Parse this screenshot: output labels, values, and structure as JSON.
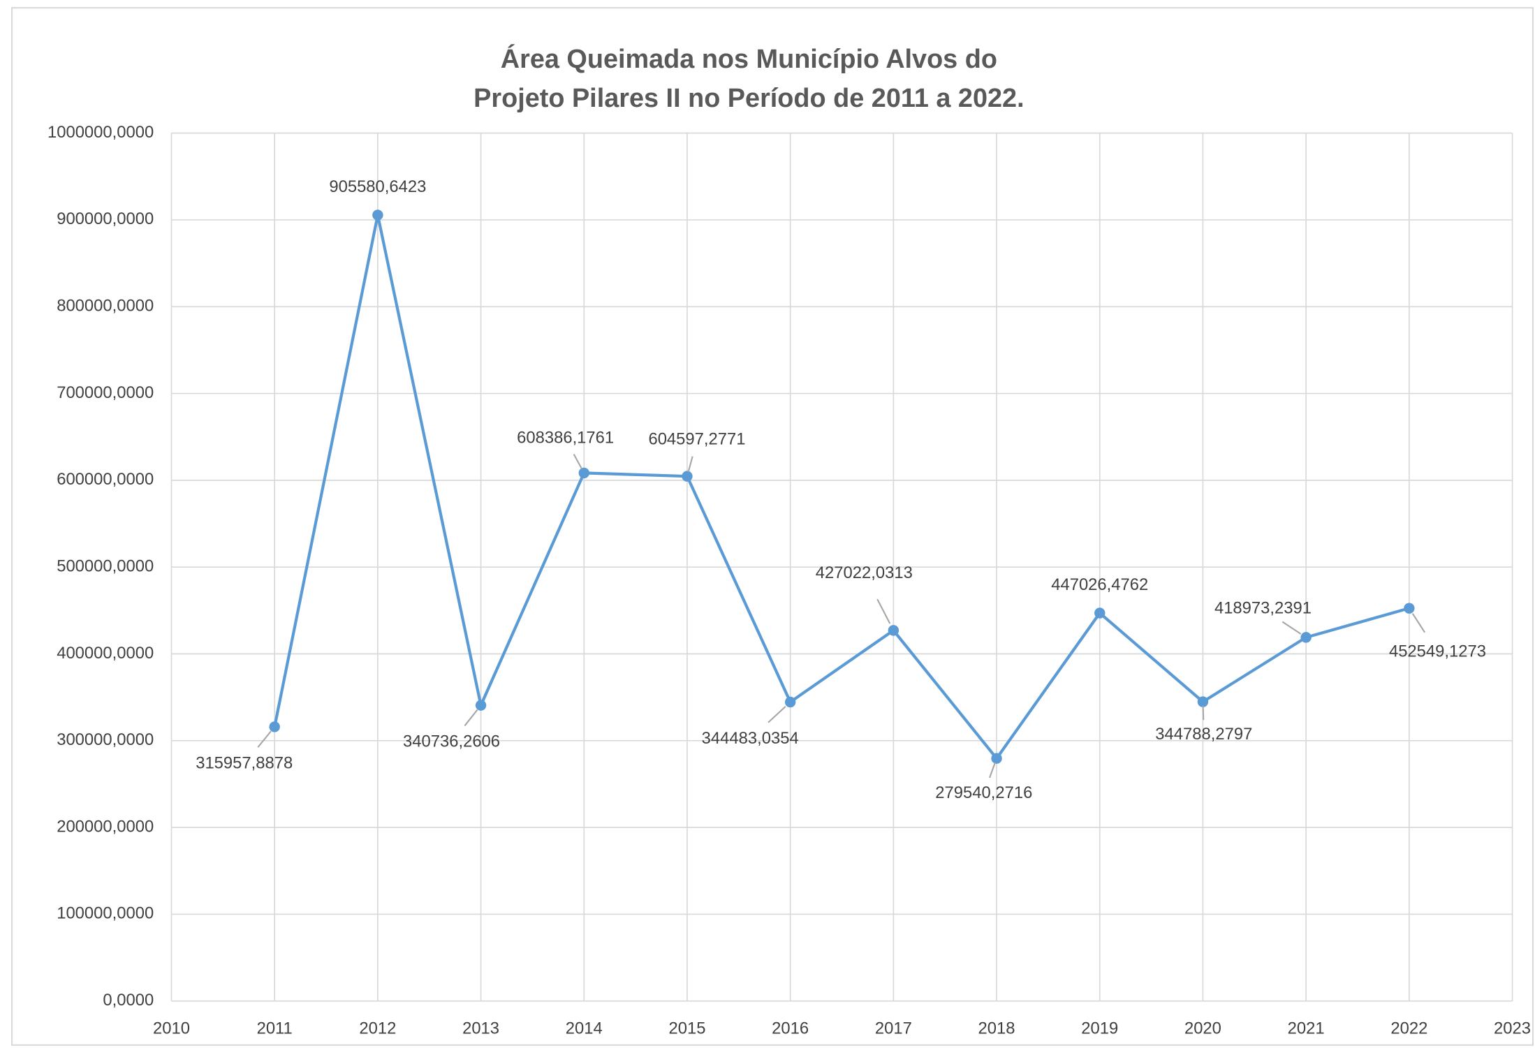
{
  "chart_data": {
    "type": "line",
    "title": [
      "Área Queimada nos Município Alvos do",
      "Projeto Pilares II no Período de 2011 a 2022."
    ],
    "x": [
      2011,
      2012,
      2013,
      2014,
      2015,
      2016,
      2017,
      2018,
      2019,
      2020,
      2021,
      2022
    ],
    "series": [
      {
        "color": "#5b9bd5",
        "values": [
          315957.8878,
          905580.6423,
          340736.2606,
          608386.1761,
          604597.2771,
          344483.0354,
          427022.0313,
          279540.2716,
          447026.4762,
          344788.2797,
          418973.2391,
          452549.1273
        ],
        "value_labels": [
          "315957,8878",
          "905580,6423",
          "340736,2606",
          "608386,1761",
          "604597,2771",
          "344483,0354",
          "427022,0313",
          "279540,2716",
          "447026,4762",
          "344788,2797",
          "418973,2391",
          "452549,1273"
        ]
      }
    ],
    "xlim": [
      2010,
      2023
    ],
    "xticks": [
      2010,
      2011,
      2012,
      2013,
      2014,
      2015,
      2016,
      2017,
      2018,
      2019,
      2020,
      2021,
      2022,
      2023
    ],
    "ylim": [
      0,
      1000000
    ],
    "yticks": [
      {
        "value": 0,
        "label": "0,0000"
      },
      {
        "value": 100000,
        "label": "100000,0000"
      },
      {
        "value": 200000,
        "label": "200000,0000"
      },
      {
        "value": 300000,
        "label": "300000,0000"
      },
      {
        "value": 400000,
        "label": "400000,0000"
      },
      {
        "value": 500000,
        "label": "500000,0000"
      },
      {
        "value": 600000,
        "label": "600000,0000"
      },
      {
        "value": 700000,
        "label": "700000,0000"
      },
      {
        "value": 800000,
        "label": "800000,0000"
      },
      {
        "value": 900000,
        "label": "900000,0000"
      },
      {
        "value": 1000000,
        "label": "1000000,0000"
      }
    ],
    "grid": true
  }
}
